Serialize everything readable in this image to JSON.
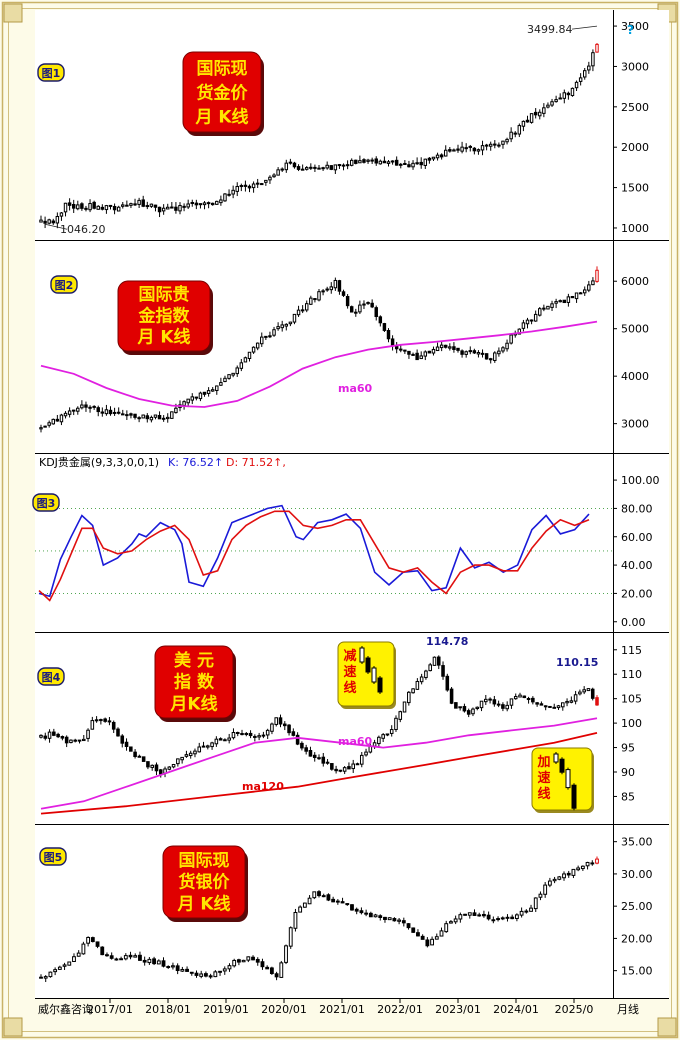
{
  "xaxis": {
    "ticks": [
      "2017/01",
      "2018/01",
      "2019/01",
      "2020/01",
      "2021/01",
      "2022/01",
      "2023/01",
      "2024/01",
      "2025/0"
    ],
    "company": "威尔鑫咨询",
    "period": "月线"
  },
  "colors": {
    "up": "#000000",
    "down": "#000000",
    "last_up": "#e01010",
    "ma60": "#e020e0",
    "ma120": "#e00000",
    "k_line": "#1a1ad8",
    "d_line": "#e01010",
    "badge_red": "#e00000",
    "badge_text": "#ffe600",
    "badge_yellow": "#fff200",
    "grid_dot": "#3a9a3a"
  },
  "chart_data": [
    {
      "id": "p1",
      "type": "candlestick",
      "fig_label": "图1",
      "title_lines": [
        "国际现",
        "货金价",
        "月  K线"
      ],
      "ylim": [
        950,
        3600
      ],
      "yticks": [
        "1000",
        "1500",
        "2000",
        "2500",
        "3000",
        "3500"
      ],
      "anchors": [
        [
          0,
          1080
        ],
        [
          3,
          1100
        ],
        [
          6,
          1280
        ],
        [
          12,
          1270
        ],
        [
          18,
          1230
        ],
        [
          24,
          1320
        ],
        [
          30,
          1210
        ],
        [
          36,
          1290
        ],
        [
          42,
          1320
        ],
        [
          48,
          1480
        ],
        [
          54,
          1580
        ],
        [
          60,
          1790
        ],
        [
          66,
          1730
        ],
        [
          72,
          1760
        ],
        [
          78,
          1820
        ],
        [
          84,
          1830
        ],
        [
          90,
          1760
        ],
        [
          96,
          1860
        ],
        [
          100,
          1960
        ],
        [
          106,
          1970
        ],
        [
          112,
          2020
        ],
        [
          120,
          2380
        ],
        [
          126,
          2620
        ],
        [
          130,
          2700
        ],
        [
          134,
          3000
        ],
        [
          136,
          3300
        ]
      ],
      "high_label": "3499.84",
      "low_label": "1046.20",
      "high_value": 3499.84,
      "low_value": 1046.2,
      "extra_marks": [
        "?"
      ]
    },
    {
      "id": "p2",
      "type": "candlestick",
      "fig_label": "图2",
      "title_lines": [
        "国际贵",
        "金指数",
        "月  K线"
      ],
      "ylim": [
        2550,
        6700
      ],
      "yticks": [
        "3000",
        "4000",
        "5000",
        "6000"
      ],
      "anchors": [
        [
          0,
          2900
        ],
        [
          4,
          3100
        ],
        [
          10,
          3400
        ],
        [
          16,
          3250
        ],
        [
          22,
          3200
        ],
        [
          30,
          3100
        ],
        [
          36,
          3500
        ],
        [
          42,
          3700
        ],
        [
          48,
          4200
        ],
        [
          54,
          4800
        ],
        [
          60,
          5100
        ],
        [
          66,
          5600
        ],
        [
          72,
          6000
        ],
        [
          76,
          5300
        ],
        [
          80,
          5600
        ],
        [
          86,
          4600
        ],
        [
          92,
          4400
        ],
        [
          98,
          4600
        ],
        [
          104,
          4500
        ],
        [
          110,
          4400
        ],
        [
          116,
          4900
        ],
        [
          122,
          5400
        ],
        [
          128,
          5600
        ],
        [
          134,
          5900
        ],
        [
          136,
          6200
        ]
      ],
      "ma60": [
        [
          0,
          4220
        ],
        [
          8,
          4050
        ],
        [
          16,
          3750
        ],
        [
          24,
          3520
        ],
        [
          32,
          3380
        ],
        [
          40,
          3350
        ],
        [
          48,
          3480
        ],
        [
          56,
          3780
        ],
        [
          64,
          4160
        ],
        [
          72,
          4400
        ],
        [
          80,
          4560
        ],
        [
          88,
          4660
        ],
        [
          96,
          4720
        ],
        [
          104,
          4790
        ],
        [
          112,
          4860
        ],
        [
          120,
          4940
        ],
        [
          128,
          5040
        ],
        [
          136,
          5150
        ]
      ],
      "ma60_label": "ma60"
    },
    {
      "id": "p3",
      "type": "line",
      "header": "KDJ贵金属(9,3,3,0,0,1)",
      "k_text": "K: 76.52↑",
      "d_text": "D: 71.52↑,",
      "fig_label": "图3",
      "ylim": [
        -3,
        105
      ],
      "yticks": [
        "0.00",
        "20.00",
        "40.00",
        "60.00",
        "80.00",
        "100.00"
      ],
      "grid": [
        20,
        50,
        80
      ],
      "k": [
        [
          0,
          20
        ],
        [
          3,
          18
        ],
        [
          6,
          44
        ],
        [
          9,
          60
        ],
        [
          12,
          75
        ],
        [
          15,
          68
        ],
        [
          18,
          40
        ],
        [
          22,
          45
        ],
        [
          26,
          55
        ],
        [
          28,
          62
        ],
        [
          30,
          60
        ],
        [
          34,
          70
        ],
        [
          38,
          65
        ],
        [
          40,
          55
        ],
        [
          42,
          28
        ],
        [
          46,
          25
        ],
        [
          50,
          45
        ],
        [
          54,
          70
        ],
        [
          56,
          72
        ],
        [
          60,
          76
        ],
        [
          64,
          80
        ],
        [
          68,
          82
        ],
        [
          72,
          60
        ],
        [
          74,
          58
        ],
        [
          78,
          70
        ],
        [
          82,
          72
        ],
        [
          86,
          76
        ],
        [
          90,
          66
        ],
        [
          94,
          35
        ],
        [
          98,
          26
        ],
        [
          102,
          35
        ],
        [
          106,
          36
        ],
        [
          110,
          22
        ],
        [
          114,
          24
        ],
        [
          118,
          52
        ],
        [
          122,
          38
        ],
        [
          126,
          42
        ],
        [
          130,
          35
        ],
        [
          134,
          40
        ],
        [
          138,
          65
        ],
        [
          142,
          75
        ],
        [
          146,
          62
        ],
        [
          150,
          65
        ],
        [
          154,
          76
        ]
      ],
      "d": [
        [
          0,
          22
        ],
        [
          3,
          15
        ],
        [
          6,
          30
        ],
        [
          9,
          48
        ],
        [
          12,
          66
        ],
        [
          15,
          66
        ],
        [
          18,
          52
        ],
        [
          22,
          48
        ],
        [
          26,
          50
        ],
        [
          30,
          58
        ],
        [
          34,
          64
        ],
        [
          38,
          68
        ],
        [
          42,
          58
        ],
        [
          46,
          33
        ],
        [
          50,
          36
        ],
        [
          54,
          58
        ],
        [
          58,
          68
        ],
        [
          62,
          74
        ],
        [
          66,
          78
        ],
        [
          70,
          78
        ],
        [
          74,
          68
        ],
        [
          78,
          66
        ],
        [
          82,
          68
        ],
        [
          86,
          72
        ],
        [
          90,
          72
        ],
        [
          94,
          55
        ],
        [
          98,
          38
        ],
        [
          102,
          35
        ],
        [
          106,
          38
        ],
        [
          110,
          28
        ],
        [
          114,
          20
        ],
        [
          118,
          35
        ],
        [
          122,
          40
        ],
        [
          126,
          40
        ],
        [
          130,
          36
        ],
        [
          134,
          36
        ],
        [
          138,
          52
        ],
        [
          142,
          64
        ],
        [
          146,
          72
        ],
        [
          150,
          68
        ],
        [
          154,
          72
        ]
      ]
    },
    {
      "id": "p4",
      "type": "candlestick",
      "fig_label": "图4",
      "title_lines": [
        "美  元",
        "指  数",
        "月K线"
      ],
      "ylim": [
        81,
        117
      ],
      "yticks": [
        "85",
        "90",
        "95",
        "100",
        "105",
        "110",
        "115"
      ],
      "anchors": [
        [
          0,
          97
        ],
        [
          3,
          98
        ],
        [
          6,
          96
        ],
        [
          10,
          97
        ],
        [
          12,
          101
        ],
        [
          16,
          100
        ],
        [
          20,
          95
        ],
        [
          24,
          92
        ],
        [
          28,
          90
        ],
        [
          34,
          94
        ],
        [
          40,
          96
        ],
        [
          46,
          98
        ],
        [
          52,
          97
        ],
        [
          55,
          101
        ],
        [
          58,
          98
        ],
        [
          62,
          94
        ],
        [
          66,
          92
        ],
        [
          70,
          90
        ],
        [
          74,
          92
        ],
        [
          78,
          96
        ],
        [
          82,
          99
        ],
        [
          86,
          106
        ],
        [
          90,
          111
        ],
        [
          92,
          113
        ],
        [
          94,
          110
        ],
        [
          96,
          104
        ],
        [
          100,
          102
        ],
        [
          104,
          105
        ],
        [
          108,
          103
        ],
        [
          112,
          106
        ],
        [
          116,
          104
        ],
        [
          120,
          103
        ],
        [
          124,
          105
        ],
        [
          128,
          107
        ],
        [
          130,
          104
        ]
      ],
      "ma60": [
        [
          0,
          82.5
        ],
        [
          10,
          84
        ],
        [
          20,
          87
        ],
        [
          30,
          90
        ],
        [
          40,
          93
        ],
        [
          50,
          96
        ],
        [
          60,
          97
        ],
        [
          70,
          96
        ],
        [
          80,
          95
        ],
        [
          90,
          96
        ],
        [
          100,
          97.5
        ],
        [
          110,
          98.5
        ],
        [
          120,
          99.5
        ],
        [
          130,
          101
        ]
      ],
      "ma120": [
        [
          0,
          81.5
        ],
        [
          20,
          83
        ],
        [
          40,
          85
        ],
        [
          60,
          87
        ],
        [
          70,
          88.5
        ],
        [
          80,
          90
        ],
        [
          90,
          91.5
        ],
        [
          100,
          93
        ],
        [
          110,
          94.5
        ],
        [
          120,
          96
        ],
        [
          130,
          98
        ]
      ],
      "ma60_label": "ma60",
      "ma120_label": "ma120",
      "high1_label": "114.78",
      "high2_label": "110.15",
      "high1_value": 114.78,
      "high2_value": 110.15,
      "inset_decel": [
        "减",
        "速",
        "线"
      ],
      "inset_accel": [
        "加",
        "速",
        "线"
      ]
    },
    {
      "id": "p5",
      "type": "candlestick",
      "fig_label": "图5",
      "title_lines": [
        "国际现",
        "货银价",
        "月  K线"
      ],
      "ylim": [
        12,
        36.5
      ],
      "yticks": [
        "15.00",
        "20.00",
        "25.00",
        "30.00",
        "35.00"
      ],
      "anchors": [
        [
          0,
          14
        ],
        [
          6,
          16
        ],
        [
          10,
          20
        ],
        [
          14,
          17
        ],
        [
          20,
          17
        ],
        [
          26,
          16
        ],
        [
          30,
          15
        ],
        [
          36,
          14
        ],
        [
          40,
          16
        ],
        [
          44,
          17
        ],
        [
          48,
          15
        ],
        [
          50,
          14
        ],
        [
          54,
          24
        ],
        [
          58,
          27
        ],
        [
          62,
          26
        ],
        [
          68,
          24
        ],
        [
          74,
          23
        ],
        [
          78,
          22
        ],
        [
          82,
          19
        ],
        [
          86,
          22
        ],
        [
          90,
          24
        ],
        [
          96,
          23
        ],
        [
          100,
          23
        ],
        [
          104,
          25
        ],
        [
          108,
          29
        ],
        [
          112,
          30
        ],
        [
          116,
          32
        ],
        [
          118,
          32
        ]
      ]
    }
  ]
}
